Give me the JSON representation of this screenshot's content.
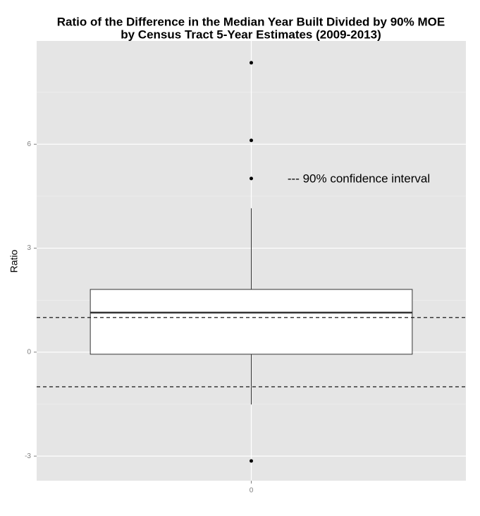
{
  "chart_data": {
    "type": "boxplot",
    "title": [
      "Ratio of the Difference in the Median Year Built Divided by 90% MOE",
      "by Census Tract 5-Year Estimates (2009-2013)"
    ],
    "ylabel": "Ratio",
    "categories": [
      "0"
    ],
    "boxes": [
      {
        "whisker_low": -1.51,
        "q1": -0.06,
        "median": 1.14,
        "q3": 1.81,
        "whisker_high": 4.15,
        "outliers": [
          8.35,
          6.11,
          5.01,
          -3.14
        ]
      }
    ],
    "hlines": [
      1,
      -1
    ],
    "annotation": "--- 90% confidence interval",
    "ylim": [
      -3.71,
      8.98
    ],
    "yticks": [
      -3,
      0,
      3,
      6
    ],
    "grid": true,
    "minor_grid": true,
    "panel_color": "#e5e5e5",
    "box_fill": "#ffffff",
    "line_color": "#333333"
  }
}
